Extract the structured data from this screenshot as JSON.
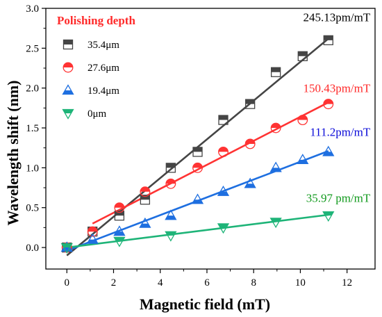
{
  "chart_data": {
    "type": "scatter",
    "xlabel": "Magnetic field (mT)",
    "ylabel": "Wavelength shift (nm)",
    "xlim": [
      -0.9,
      13.2
    ],
    "ylim": [
      -0.27,
      3.0
    ],
    "xticks": [
      0,
      2,
      4,
      6,
      8,
      10,
      12
    ],
    "yticks": [
      0.0,
      0.5,
      1.0,
      1.5,
      2.0,
      2.5,
      3.0
    ],
    "ytick_labels": [
      "0.0",
      "0.5",
      "1.0",
      "1.5",
      "2.0",
      "2.5",
      "3.0"
    ],
    "legend_title": "Polishing depth",
    "legend_position": "top-left",
    "grid": false,
    "series": [
      {
        "name": "35.4μm",
        "marker": "square-half",
        "color": "#454545",
        "x": [
          0,
          1.1,
          2.25,
          3.35,
          4.45,
          5.6,
          6.7,
          7.85,
          8.95,
          10.1,
          11.2
        ],
        "y": [
          0.0,
          0.2,
          0.4,
          0.6,
          1.0,
          1.2,
          1.6,
          1.8,
          2.2,
          2.4,
          2.6
        ],
        "fit_label": "245.13pm/mT",
        "fit_color": "#000000",
        "fit_line": {
          "x": [
            0,
            11.2
          ],
          "y": [
            -0.1,
            2.62
          ]
        }
      },
      {
        "name": "27.6μm",
        "marker": "circle-half",
        "color": "#ff3333",
        "x": [
          0,
          1.1,
          2.25,
          3.35,
          4.45,
          5.6,
          6.7,
          7.85,
          8.95,
          10.1,
          11.2
        ],
        "y": [
          0.0,
          0.2,
          0.5,
          0.7,
          0.8,
          1.0,
          1.2,
          1.3,
          1.5,
          1.6,
          1.8
        ],
        "fit_label": "150.43pm/mT",
        "fit_color": "#ff2a2a",
        "fit_line": {
          "x": [
            1.1,
            11.2
          ],
          "y": [
            0.3,
            1.82
          ]
        }
      },
      {
        "name": "19.4μm",
        "marker": "triangle-up-half",
        "color": "#1e6fe0",
        "x": [
          0,
          1.1,
          2.25,
          3.35,
          4.45,
          5.6,
          6.7,
          7.85,
          8.95,
          10.1,
          11.2
        ],
        "y": [
          0.0,
          0.1,
          0.2,
          0.3,
          0.4,
          0.6,
          0.7,
          0.8,
          1.0,
          1.1,
          1.2
        ],
        "fit_label": "111.2pm/mT",
        "fit_color": "#0a0ad8",
        "fit_line": {
          "x": [
            0,
            11.2
          ],
          "y": [
            -0.04,
            1.21
          ]
        }
      },
      {
        "name": "0μm",
        "marker": "triangle-down-half",
        "color": "#1eb478",
        "x": [
          0,
          2.25,
          4.45,
          6.7,
          8.95,
          11.2
        ],
        "y": [
          0.0,
          0.08,
          0.15,
          0.25,
          0.32,
          0.4
        ],
        "fit_label": "35.97 pm/mT",
        "fit_color": "#129a1e",
        "fit_line": {
          "x": [
            0,
            11.2
          ],
          "y": [
            0.0,
            0.41
          ]
        }
      }
    ]
  }
}
